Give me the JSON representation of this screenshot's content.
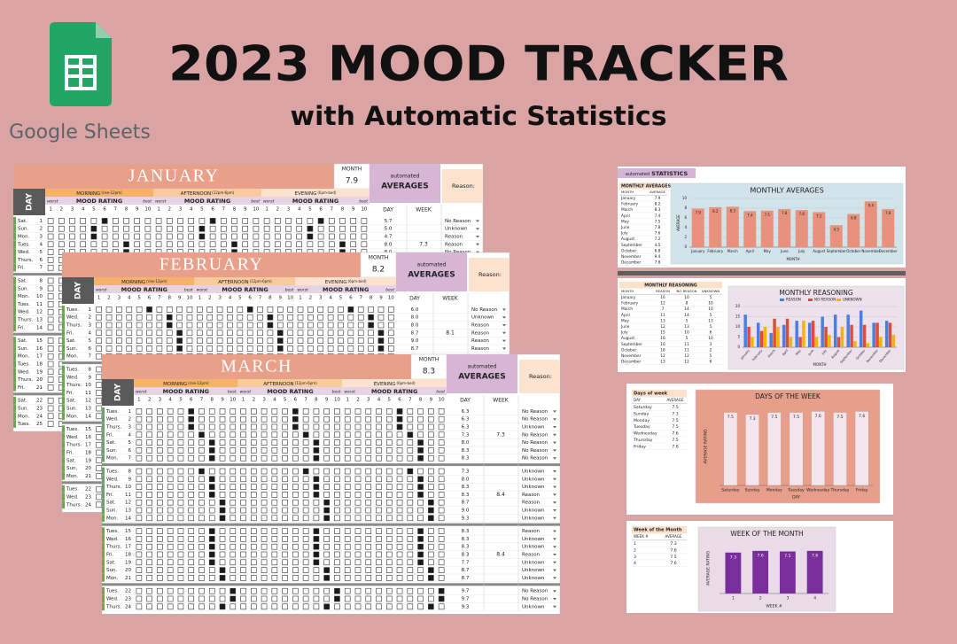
{
  "header": {
    "title": "2023 MOOD TRACKER",
    "subtitle": "with Automatic Statistics",
    "brand": "Google Sheets"
  },
  "sheet_labels": {
    "day": "DAY",
    "month": "MONTH",
    "automated": "automated",
    "averages": "AVERAGES",
    "week": "WEEK",
    "reason": "Reason:",
    "sections": [
      {
        "name": "MORNING",
        "note": "(rise-12pm)"
      },
      {
        "name": "AFTERNOON",
        "note": "(12pm-6pm)"
      },
      {
        "name": "EVENING",
        "note": "(6pm-bed)"
      }
    ],
    "mood_rating": "MOOD RATING",
    "worst": "worst",
    "best": "best",
    "scale": [
      1,
      2,
      3,
      4,
      5,
      6,
      7,
      8,
      9,
      10
    ]
  },
  "sheets": [
    {
      "month": "JANUARY",
      "month_average": 7.9,
      "days": [
        "Sat.",
        "Sun.",
        "Mon.",
        "Tues.",
        "Wed.",
        "Thurs.",
        "Fri.",
        "Sat.",
        "Sun.",
        "Mon.",
        "Tues.",
        "Wed.",
        "Thurs.",
        "Fri.",
        "Sat.",
        "Sun.",
        "Mon.",
        "Tues.",
        "Wed.",
        "Thurs.",
        "Fri.",
        "Sat.",
        "Sun.",
        "Mon.",
        "Tues."
      ],
      "dates": [
        1,
        2,
        3,
        4,
        5,
        6,
        7,
        8,
        9,
        10,
        11,
        12,
        13,
        14,
        15,
        16,
        17,
        18,
        19,
        20,
        21,
        22,
        23,
        24,
        25
      ],
      "day_averages": [
        "5.7",
        "5.0",
        "4.7",
        "8.0",
        "8.0"
      ],
      "week_averages": [
        "7.3"
      ],
      "reasons": [
        "No Reason",
        "Unknown",
        "Reason",
        "Reason",
        "No Reason"
      ]
    },
    {
      "month": "FEBRUARY",
      "month_average": 8.2,
      "days": [
        "Tues.",
        "Wed.",
        "Thurs.",
        "Fri.",
        "Sat.",
        "Sun.",
        "Mon.",
        "Tues.",
        "Wed.",
        "Thurs.",
        "Fri.",
        "Sat.",
        "Sun.",
        "Mon.",
        "Tues.",
        "Wed.",
        "Thurs.",
        "Fri.",
        "Sat.",
        "Sun.",
        "Mon.",
        "Tues.",
        "Wed.",
        "Thurs."
      ],
      "dates": [
        1,
        2,
        3,
        4,
        5,
        6,
        7,
        8,
        9,
        10,
        11,
        12,
        13,
        14,
        15,
        16,
        17,
        18,
        19,
        20,
        21,
        22,
        23,
        24
      ],
      "day_averages": [
        "6.0",
        "8.0",
        "8.0",
        "8.7",
        "9.0",
        "8.7"
      ],
      "week_averages": [
        "8.1"
      ],
      "reasons": [
        "No Reason",
        "Unknown",
        "Reason",
        "Reason",
        "Reason",
        "Reason"
      ]
    },
    {
      "month": "MARCH",
      "month_average": 8.3,
      "days": [
        "Tues.",
        "Wed.",
        "Thurs.",
        "Fri.",
        "Sat.",
        "Sun.",
        "Mon.",
        "Tues.",
        "Wed.",
        "Thurs.",
        "Fri.",
        "Sat.",
        "Sun.",
        "Mon.",
        "Tues.",
        "Wed.",
        "Thurs.",
        "Fri.",
        "Sat.",
        "Sun.",
        "Mon.",
        "Tues.",
        "Wed.",
        "Thurs."
      ],
      "dates": [
        1,
        2,
        3,
        4,
        5,
        6,
        7,
        8,
        9,
        10,
        11,
        12,
        13,
        14,
        15,
        16,
        17,
        18,
        19,
        20,
        21,
        22,
        23,
        24
      ],
      "day_averages": [
        "6.3",
        "6.3",
        "6.3",
        "7.3",
        "8.0",
        "8.3",
        "8.3",
        "7.3",
        "8.0",
        "8.3",
        "8.3",
        "8.7",
        "9.0",
        "9.3",
        "8.3",
        "8.3",
        "8.3",
        "8.3",
        "7.7",
        "8.7",
        "8.7",
        "9.7",
        "9.7",
        "9.3"
      ],
      "week_averages": [
        "7.3",
        "8.4",
        "8.4"
      ],
      "reasons": [
        "No Reason",
        "No Reason",
        "Unknown",
        "No Reason",
        "No Reason",
        "No Reason",
        "No Reason",
        "Unknown",
        "Unknown",
        "Unknown",
        "Reason",
        "Reason",
        "Unknown",
        "Unknown",
        "Reason",
        "Unknown",
        "Unknown",
        "Reason",
        "Unknown",
        "Unknown",
        "Unknown",
        "No Reason",
        "No Reason",
        "Unknown"
      ]
    }
  ],
  "stats": {
    "pre": "automated",
    "title": "STATISTICS"
  },
  "chart_data": [
    {
      "type": "bar",
      "title": "MONTHLY AVERAGES",
      "table_title": "MONTHLY AVERAGES",
      "table_headers": [
        "MONTH",
        "AVERAGE"
      ],
      "categories": [
        "January",
        "February",
        "March",
        "April",
        "May",
        "June",
        "July",
        "August",
        "September",
        "October",
        "November",
        "December"
      ],
      "values": [
        7.9,
        8.2,
        8.3,
        7.4,
        7.5,
        7.8,
        7.6,
        7.2,
        4.5,
        6.8,
        9.4,
        7.8
      ],
      "color": "#e8917c",
      "xlabel": "MONTH",
      "ylabel": "AVERAGE",
      "ylim": [
        0,
        10
      ],
      "yticks": [
        0,
        2,
        4,
        6,
        8,
        10
      ],
      "grid": true,
      "data_labels": true
    },
    {
      "type": "bar",
      "title": "MONTHLY REASONING",
      "table_title": "MONTHLY REASONING",
      "table_headers": [
        "MONTH",
        "REASON",
        "NO REASON",
        "UNKNOWN"
      ],
      "categories": [
        "January",
        "February",
        "March",
        "April",
        "May",
        "June",
        "July",
        "August",
        "September",
        "October",
        "November",
        "December"
      ],
      "series": [
        {
          "name": "REASON",
          "color": "#4a7fe0",
          "values": [
            16,
            12,
            7,
            11,
            13,
            12,
            15,
            16,
            16,
            18,
            12,
            13
          ]
        },
        {
          "name": "NO REASON",
          "color": "#e04a3c",
          "values": [
            10,
            8,
            14,
            14,
            5,
            13,
            10,
            5,
            11,
            11,
            12,
            12
          ]
        },
        {
          "name": "UNKNOWN",
          "color": "#f4b400",
          "values": [
            5,
            10,
            10,
            5,
            13,
            5,
            6,
            10,
            3,
            2,
            5,
            6
          ]
        }
      ],
      "xlabel": "MONTH",
      "ylim": [
        0,
        20
      ],
      "yticks": [
        0,
        5,
        10,
        15,
        20
      ],
      "grid": true,
      "legend": "top"
    },
    {
      "type": "bar",
      "title": "DAYS OF THE WEEK",
      "table_title": "Days of week",
      "table_headers": [
        "DAY",
        "AVERAGE"
      ],
      "categories": [
        "Saturday",
        "Sunday",
        "Monday",
        "Tuesday",
        "Wednesday",
        "Thursday",
        "Friday"
      ],
      "values": [
        7.5,
        7.3,
        7.5,
        7.5,
        7.6,
        7.5,
        7.6
      ],
      "color": "#f2e6ec",
      "xlabel": "DAY",
      "ylabel": "AVERAGE RATING",
      "ylim": [
        0,
        8
      ],
      "data_labels": true
    },
    {
      "type": "bar",
      "title": "WEEK OF THE MONTH",
      "table_title": "Week of the Month",
      "table_headers": [
        "WEEK #",
        "AVERAGE"
      ],
      "categories": [
        "1",
        "2",
        "3",
        "4"
      ],
      "values": [
        7.3,
        7.6,
        7.5,
        7.6
      ],
      "color": "#7a2d9c",
      "xlabel": "WEEK #",
      "ylabel": "AVERAGE RATING",
      "ylim": [
        0,
        9
      ],
      "data_labels": true
    }
  ]
}
